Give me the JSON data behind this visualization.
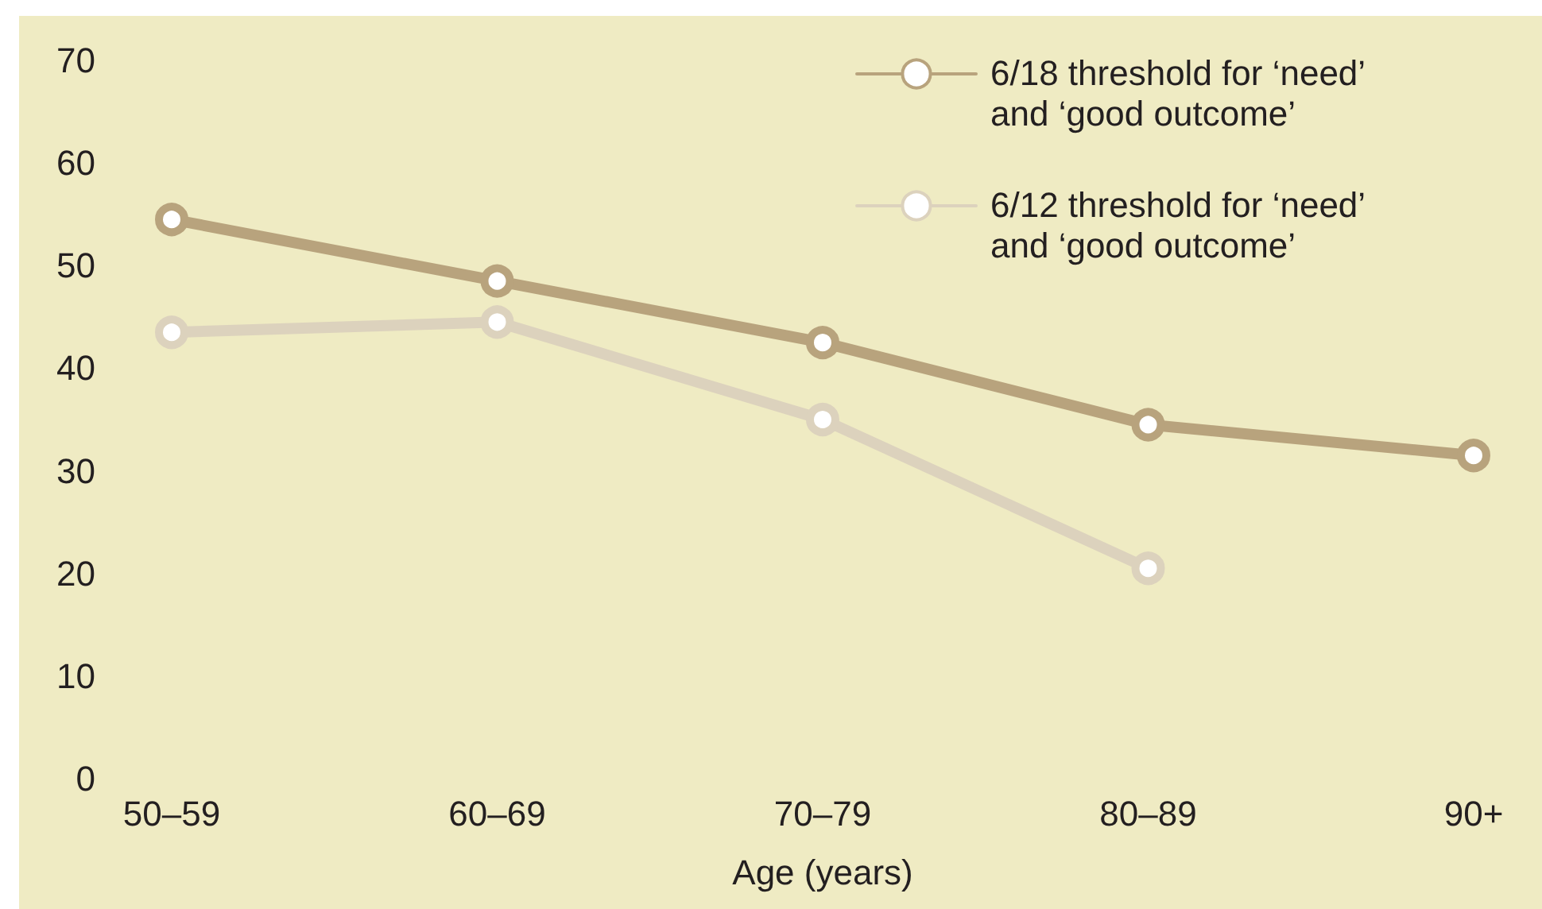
{
  "chart_data": {
    "type": "line",
    "xlabel": "Age (years)",
    "categories": [
      "50–59",
      "60–69",
      "70–79",
      "80–89",
      "90+"
    ],
    "series": [
      {
        "name": "6/18 threshold for ‘need’ and ‘good outcome’",
        "color": "#b8a37d",
        "values": [
          54.5,
          48.5,
          42.5,
          34.5,
          31.5
        ]
      },
      {
        "name": "6/12 threshold for ‘need’ and ‘good outcome’",
        "color": "#dcd2bd",
        "values": [
          43.5,
          44.5,
          35,
          20.5,
          null
        ]
      }
    ],
    "ylim": [
      0,
      70
    ],
    "yticks": [
      0,
      10,
      20,
      30,
      40,
      50,
      60,
      70
    ],
    "grid": false,
    "legend": "top right",
    "marker": "circle",
    "line_style": "solid"
  }
}
